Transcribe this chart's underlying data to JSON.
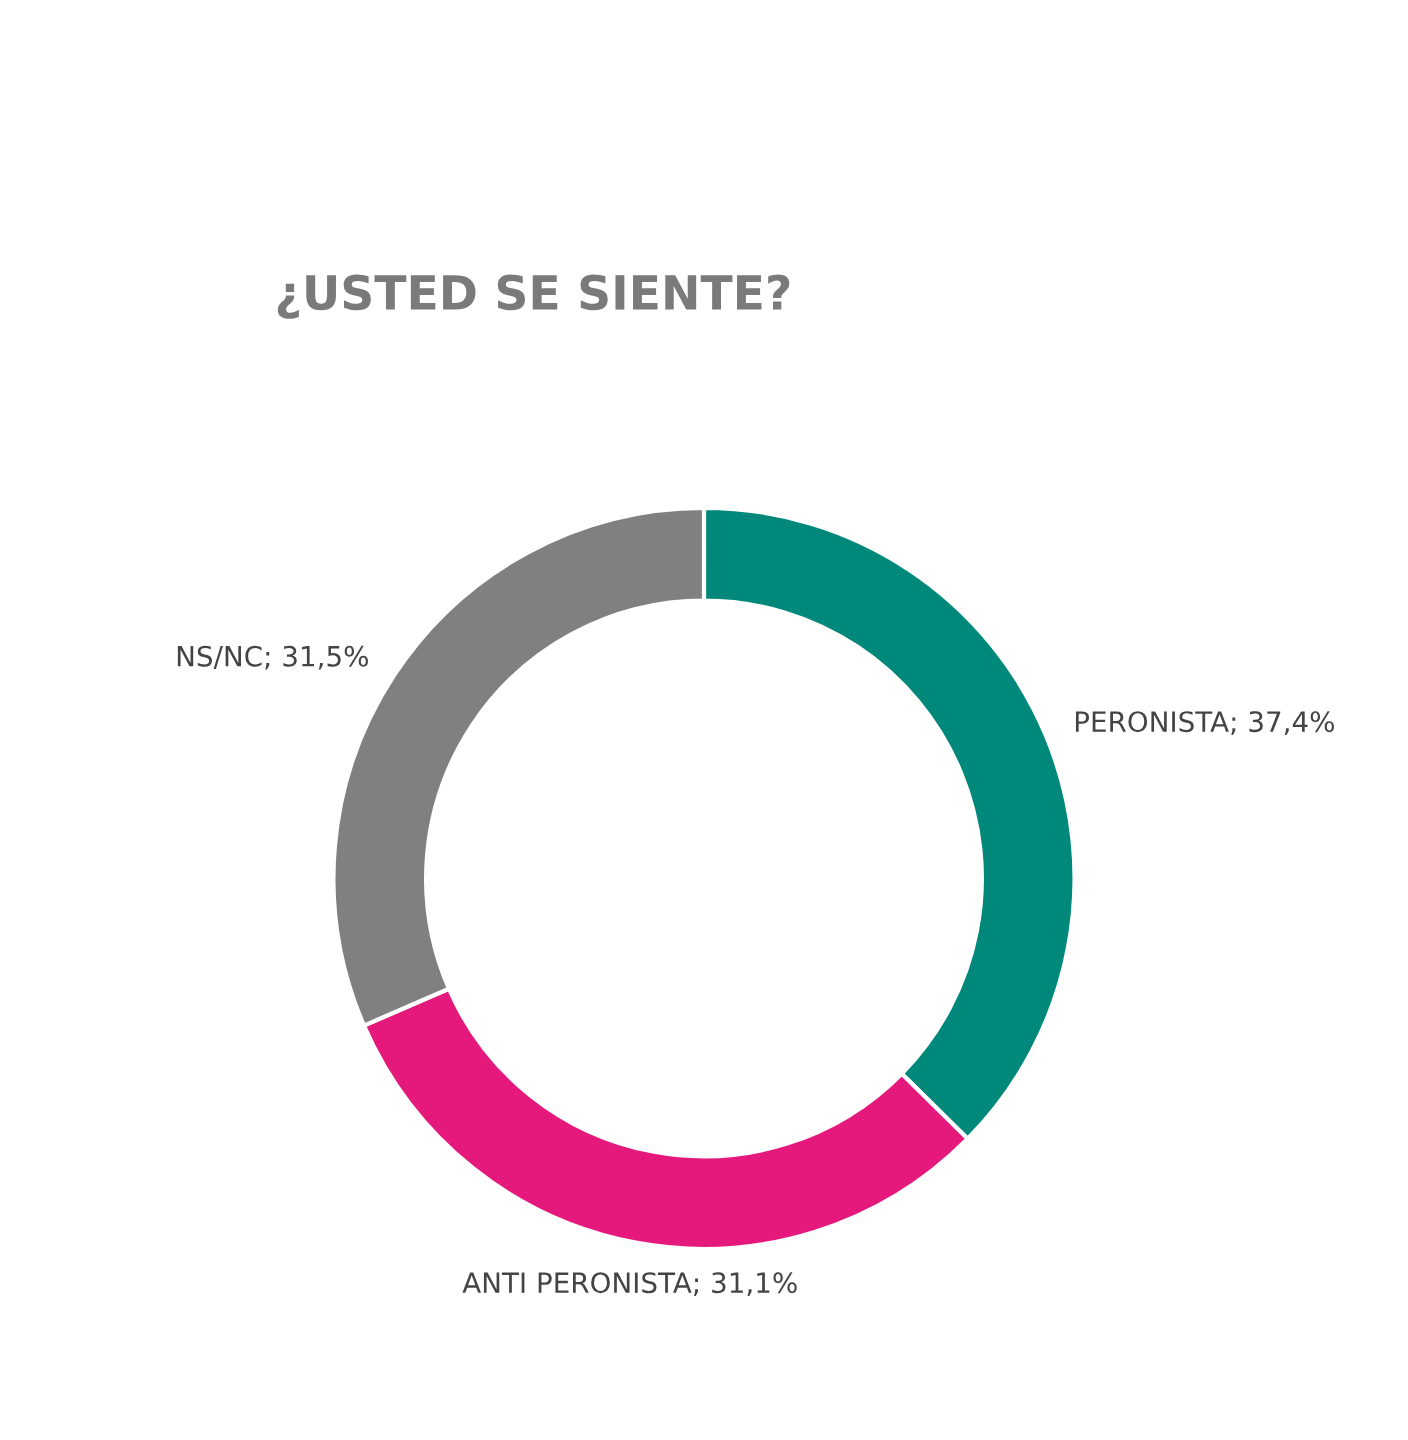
{
  "chart_data": {
    "type": "donut",
    "title": "¿USTED SE SIENTE?",
    "categories": [
      "PERONISTA",
      "ANTI PERONISTA",
      "NS/NC"
    ],
    "values": [
      37.4,
      31.1,
      31.5
    ],
    "value_labels": [
      "37,4%",
      "31,1%",
      "31,5%"
    ],
    "colors": [
      "#00897b",
      "#e5197b",
      "#808080"
    ],
    "legend": false
  }
}
